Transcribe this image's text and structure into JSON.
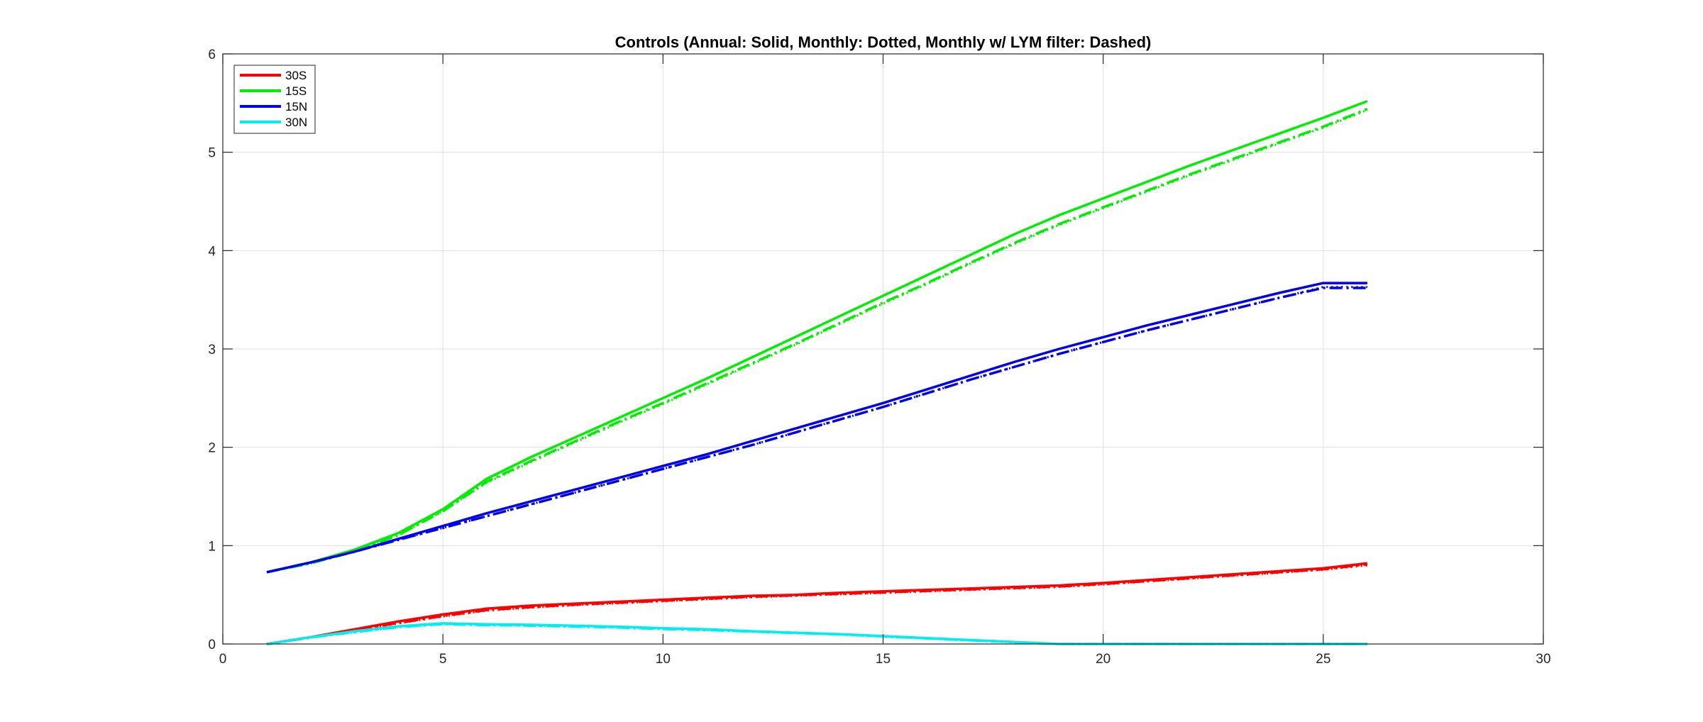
{
  "chart_data": {
    "type": "line",
    "title": "Controls (Annual: Solid, Monthly: Dotted, Monthly w/ LYM filter: Dashed)",
    "xlabel": "",
    "ylabel": "",
    "xlim": [
      0,
      30
    ],
    "ylim": [
      0,
      6
    ],
    "xticks": [
      0,
      5,
      10,
      15,
      20,
      25,
      30
    ],
    "yticks": [
      0,
      1,
      2,
      3,
      4,
      5,
      6
    ],
    "grid": true,
    "legend_position": "top-left",
    "x": [
      1,
      2,
      3,
      4,
      5,
      6,
      7,
      8,
      9,
      10,
      11,
      12,
      13,
      14,
      15,
      16,
      17,
      18,
      19,
      20,
      21,
      22,
      23,
      24,
      25,
      26
    ],
    "series": [
      {
        "name": "30S",
        "color": "#ff0000",
        "annual": [
          0.0,
          0.07,
          0.15,
          0.23,
          0.3,
          0.36,
          0.39,
          0.41,
          0.43,
          0.45,
          0.47,
          0.49,
          0.5,
          0.52,
          0.535,
          0.55,
          0.565,
          0.58,
          0.595,
          0.62,
          0.65,
          0.68,
          0.71,
          0.74,
          0.77,
          0.82
        ],
        "monthly": [
          0.0,
          0.065,
          0.14,
          0.21,
          0.28,
          0.34,
          0.37,
          0.395,
          0.415,
          0.435,
          0.455,
          0.475,
          0.49,
          0.505,
          0.52,
          0.535,
          0.55,
          0.565,
          0.58,
          0.605,
          0.635,
          0.665,
          0.695,
          0.725,
          0.755,
          0.8
        ],
        "monthly_lym": [
          0.0,
          0.066,
          0.142,
          0.215,
          0.285,
          0.345,
          0.375,
          0.4,
          0.42,
          0.44,
          0.46,
          0.48,
          0.495,
          0.51,
          0.525,
          0.54,
          0.555,
          0.57,
          0.585,
          0.61,
          0.64,
          0.67,
          0.7,
          0.73,
          0.76,
          0.81
        ]
      },
      {
        "name": "15S",
        "color": "#00ee00",
        "annual": [
          0.73,
          0.83,
          0.96,
          1.13,
          1.37,
          1.68,
          1.9,
          2.1,
          2.3,
          2.5,
          2.7,
          2.91,
          3.12,
          3.33,
          3.54,
          3.75,
          3.96,
          4.17,
          4.36,
          4.53,
          4.7,
          4.87,
          5.03,
          5.19,
          5.35,
          5.52
        ],
        "monthly": [
          0.73,
          0.82,
          0.94,
          1.11,
          1.35,
          1.64,
          1.85,
          2.05,
          2.25,
          2.44,
          2.64,
          2.84,
          3.04,
          3.25,
          3.46,
          3.66,
          3.87,
          4.07,
          4.26,
          4.43,
          4.6,
          4.77,
          4.93,
          5.09,
          5.25,
          5.43
        ],
        "monthly_lym": [
          0.73,
          0.82,
          0.94,
          1.11,
          1.35,
          1.65,
          1.86,
          2.06,
          2.26,
          2.45,
          2.65,
          2.85,
          3.05,
          3.26,
          3.47,
          3.67,
          3.88,
          4.08,
          4.27,
          4.44,
          4.61,
          4.78,
          4.94,
          5.1,
          5.26,
          5.44
        ]
      },
      {
        "name": "15N",
        "color": "#0000ee",
        "annual": [
          0.73,
          0.83,
          0.94,
          1.07,
          1.2,
          1.33,
          1.45,
          1.57,
          1.69,
          1.81,
          1.93,
          2.06,
          2.19,
          2.32,
          2.45,
          2.59,
          2.73,
          2.87,
          3.0,
          3.12,
          3.24,
          3.35,
          3.46,
          3.57,
          3.67,
          3.67
        ],
        "monthly": [
          0.73,
          0.83,
          0.94,
          1.06,
          1.18,
          1.3,
          1.42,
          1.54,
          1.66,
          1.78,
          1.9,
          2.02,
          2.15,
          2.28,
          2.41,
          2.55,
          2.69,
          2.82,
          2.95,
          3.07,
          3.19,
          3.3,
          3.41,
          3.52,
          3.63,
          3.63
        ],
        "monthly_lym": [
          0.73,
          0.83,
          0.94,
          1.06,
          1.18,
          1.3,
          1.42,
          1.54,
          1.66,
          1.78,
          1.9,
          2.02,
          2.15,
          2.28,
          2.41,
          2.55,
          2.69,
          2.82,
          2.95,
          3.07,
          3.19,
          3.3,
          3.41,
          3.52,
          3.62,
          3.62
        ]
      },
      {
        "name": "30N",
        "color": "#00eeee",
        "annual": [
          0.0,
          0.07,
          0.13,
          0.18,
          0.21,
          0.2,
          0.195,
          0.185,
          0.175,
          0.16,
          0.15,
          0.13,
          0.115,
          0.1,
          0.08,
          0.06,
          0.04,
          0.02,
          0.0,
          0.0,
          0.0,
          0.0,
          0.0,
          0.0,
          0.0,
          0.0
        ],
        "monthly": [
          0.0,
          0.065,
          0.12,
          0.17,
          0.2,
          0.19,
          0.185,
          0.175,
          0.165,
          0.15,
          0.14,
          0.125,
          0.11,
          0.095,
          0.075,
          0.055,
          0.035,
          0.015,
          0.0,
          0.0,
          0.0,
          0.0,
          0.0,
          0.0,
          0.0,
          0.0
        ],
        "monthly_lym": [
          0.0,
          0.066,
          0.122,
          0.172,
          0.202,
          0.192,
          0.187,
          0.177,
          0.167,
          0.152,
          0.142,
          0.127,
          0.112,
          0.097,
          0.077,
          0.057,
          0.037,
          0.017,
          0.0,
          0.0,
          0.0,
          0.0,
          0.0,
          0.0,
          0.0,
          0.0
        ]
      }
    ]
  }
}
